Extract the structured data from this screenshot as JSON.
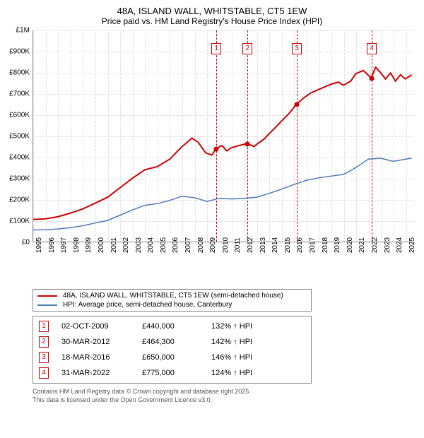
{
  "title_line1": "48A, ISLAND WALL, WHITSTABLE, CT5 1EW",
  "title_line2": "Price paid vs. HM Land Registry's House Price Index (HPI)",
  "chart": {
    "x_years": [
      "1995",
      "1996",
      "1997",
      "1998",
      "1999",
      "2000",
      "2001",
      "2002",
      "2003",
      "2004",
      "2005",
      "2006",
      "2007",
      "2008",
      "2009",
      "2010",
      "2011",
      "2012",
      "2013",
      "2014",
      "2015",
      "2016",
      "2017",
      "2018",
      "2019",
      "2020",
      "2021",
      "2022",
      "2023",
      "2024",
      "2025"
    ],
    "y_ticks": [
      "£0",
      "£100K",
      "£200K",
      "£300K",
      "£400K",
      "£500K",
      "£600K",
      "£700K",
      "£800K",
      "£900K",
      "£1M"
    ],
    "ylim": [
      0,
      1000000
    ],
    "xlim": [
      1995,
      2025.7
    ],
    "series": {
      "property": {
        "color": "#cc0000",
        "width": 2,
        "label": "48A, ISLAND WALL, WHITSTABLE, CT5 1EW (semi-detached house)",
        "points": [
          [
            1995,
            105000
          ],
          [
            1996,
            108000
          ],
          [
            1997,
            118000
          ],
          [
            1998,
            135000
          ],
          [
            1999,
            155000
          ],
          [
            2000,
            182000
          ],
          [
            2001,
            210000
          ],
          [
            2002,
            255000
          ],
          [
            2003,
            300000
          ],
          [
            2004,
            340000
          ],
          [
            2005,
            355000
          ],
          [
            2006,
            390000
          ],
          [
            2007,
            450000
          ],
          [
            2007.8,
            490000
          ],
          [
            2008.3,
            470000
          ],
          [
            2008.9,
            420000
          ],
          [
            2009.4,
            410000
          ],
          [
            2009.75,
            440000
          ],
          [
            2010.2,
            455000
          ],
          [
            2010.6,
            430000
          ],
          [
            2011,
            445000
          ],
          [
            2011.6,
            455000
          ],
          [
            2012.24,
            464300
          ],
          [
            2012.8,
            450000
          ],
          [
            2013,
            460000
          ],
          [
            2013.6,
            485000
          ],
          [
            2014,
            510000
          ],
          [
            2014.6,
            545000
          ],
          [
            2015,
            570000
          ],
          [
            2015.6,
            605000
          ],
          [
            2016.21,
            650000
          ],
          [
            2016.8,
            680000
          ],
          [
            2017.4,
            705000
          ],
          [
            2018,
            720000
          ],
          [
            2018.6,
            735000
          ],
          [
            2019,
            745000
          ],
          [
            2019.6,
            755000
          ],
          [
            2020,
            740000
          ],
          [
            2020.6,
            760000
          ],
          [
            2021,
            795000
          ],
          [
            2021.6,
            810000
          ],
          [
            2022.24,
            775000
          ],
          [
            2022.6,
            825000
          ],
          [
            2023,
            800000
          ],
          [
            2023.4,
            770000
          ],
          [
            2023.8,
            798000
          ],
          [
            2024.2,
            760000
          ],
          [
            2024.6,
            790000
          ],
          [
            2025,
            770000
          ],
          [
            2025.5,
            790000
          ]
        ]
      },
      "hpi": {
        "color": "#4a7bb5",
        "width": 1.5,
        "label": "HPI: Average price, semi-detached house, Canterbury",
        "points": [
          [
            1995,
            55000
          ],
          [
            1996,
            56000
          ],
          [
            1997,
            60000
          ],
          [
            1998,
            66000
          ],
          [
            1999,
            75000
          ],
          [
            2000,
            88000
          ],
          [
            2001,
            100000
          ],
          [
            2002,
            125000
          ],
          [
            2003,
            150000
          ],
          [
            2004,
            172000
          ],
          [
            2005,
            180000
          ],
          [
            2006,
            195000
          ],
          [
            2007,
            215000
          ],
          [
            2008,
            208000
          ],
          [
            2009,
            190000
          ],
          [
            2010,
            205000
          ],
          [
            2011,
            202000
          ],
          [
            2012,
            205000
          ],
          [
            2013,
            210000
          ],
          [
            2014,
            228000
          ],
          [
            2015,
            248000
          ],
          [
            2016,
            270000
          ],
          [
            2017,
            290000
          ],
          [
            2018,
            302000
          ],
          [
            2019,
            310000
          ],
          [
            2020,
            318000
          ],
          [
            2021,
            350000
          ],
          [
            2022,
            390000
          ],
          [
            2023,
            395000
          ],
          [
            2024,
            380000
          ],
          [
            2025,
            390000
          ],
          [
            2025.5,
            395000
          ]
        ]
      }
    },
    "markers": [
      {
        "n": "1",
        "year": 2009.75,
        "price": 440000
      },
      {
        "n": "2",
        "year": 2012.24,
        "price": 464300
      },
      {
        "n": "3",
        "year": 2016.21,
        "price": 650000
      },
      {
        "n": "4",
        "year": 2022.24,
        "price": 775000
      }
    ],
    "grid_color": "#d5d5d5",
    "background_color": "#ffffff"
  },
  "legend": {
    "items": [
      {
        "color": "#cc0000",
        "label": "48A, ISLAND WALL, WHITSTABLE, CT5 1EW (semi-detached house)"
      },
      {
        "color": "#4a7bb5",
        "label": "HPI: Average price, semi-detached house, Canterbury"
      }
    ]
  },
  "transactions": [
    {
      "n": "1",
      "date": "02-OCT-2009",
      "price": "£440,000",
      "hpi": "132% ↑ HPI"
    },
    {
      "n": "2",
      "date": "30-MAR-2012",
      "price": "£464,300",
      "hpi": "142% ↑ HPI"
    },
    {
      "n": "3",
      "date": "18-MAR-2016",
      "price": "£650,000",
      "hpi": "146% ↑ HPI"
    },
    {
      "n": "4",
      "date": "31-MAR-2022",
      "price": "£775,000",
      "hpi": "124% ↑ HPI"
    }
  ],
  "footer_line1": "Contains HM Land Registry data © Crown copyright and database right 2025.",
  "footer_line2": "This data is licensed under the Open Government Licence v3.0."
}
